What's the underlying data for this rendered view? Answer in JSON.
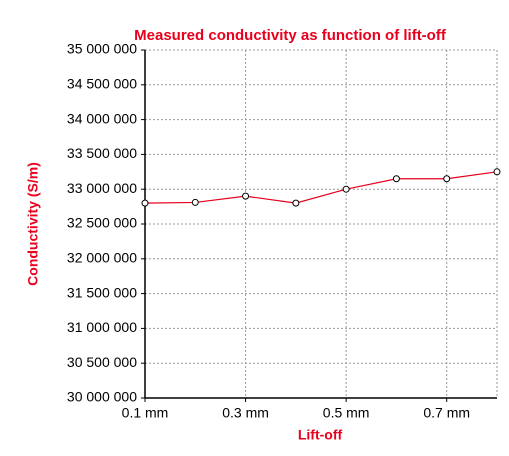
{
  "chart_data": {
    "type": "line",
    "title": "Measured conductivity as function of lift-off",
    "x_label": "Lift-off",
    "y_label": "Conductivity (S/m)",
    "x": [
      0.1,
      0.2,
      0.3,
      0.4,
      0.5,
      0.6,
      0.7,
      0.8
    ],
    "series": [
      {
        "name": "Conductivity",
        "color": "#e8001c",
        "values": [
          32800000,
          32810000,
          32900000,
          32800000,
          33000000,
          33150000,
          33150000,
          33250000
        ]
      }
    ],
    "xlim": [
      0.1,
      0.8
    ],
    "xticks": [
      {
        "value": 0.1,
        "label": "0.1 mm"
      },
      {
        "value": 0.3,
        "label": "0.3 mm"
      },
      {
        "value": 0.5,
        "label": "0.5 mm"
      },
      {
        "value": 0.7,
        "label": "0.7 mm"
      }
    ],
    "ylim": [
      30000000,
      35000000
    ],
    "yticks": [
      {
        "value": 30000000,
        "label": "30 000 000"
      },
      {
        "value": 30500000,
        "label": "30 500 000"
      },
      {
        "value": 31000000,
        "label": "31 000 000"
      },
      {
        "value": 31500000,
        "label": "31 500 000"
      },
      {
        "value": 32000000,
        "label": "32 000 000"
      },
      {
        "value": 32500000,
        "label": "32 500 000"
      },
      {
        "value": 33000000,
        "label": "33 000 000"
      },
      {
        "value": 33500000,
        "label": "33 500 000"
      },
      {
        "value": 34000000,
        "label": "34 000 000"
      },
      {
        "value": 34500000,
        "label": "34 500 000"
      },
      {
        "value": 35000000,
        "label": "35 000 000"
      }
    ],
    "grid": true
  }
}
